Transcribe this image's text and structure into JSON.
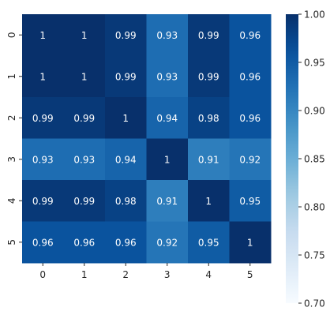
{
  "chart_data": {
    "type": "heatmap",
    "title": "",
    "xlabel": "",
    "ylabel": "",
    "x_categories": [
      "0",
      "1",
      "2",
      "3",
      "4",
      "5"
    ],
    "y_categories": [
      "0",
      "1",
      "2",
      "3",
      "4",
      "5"
    ],
    "values": [
      [
        1.0,
        1.0,
        0.99,
        0.93,
        0.99,
        0.96
      ],
      [
        1.0,
        1.0,
        0.99,
        0.93,
        0.99,
        0.96
      ],
      [
        0.99,
        0.99,
        1.0,
        0.94,
        0.98,
        0.96
      ],
      [
        0.93,
        0.93,
        0.94,
        1.0,
        0.91,
        0.92
      ],
      [
        0.99,
        0.99,
        0.98,
        0.91,
        1.0,
        0.95
      ],
      [
        0.96,
        0.96,
        0.96,
        0.92,
        0.95,
        1.0
      ]
    ],
    "annotations": [
      [
        "1",
        "1",
        "0.99",
        "0.93",
        "0.99",
        "0.96"
      ],
      [
        "1",
        "1",
        "0.99",
        "0.93",
        "0.99",
        "0.96"
      ],
      [
        "0.99",
        "0.99",
        "1",
        "0.94",
        "0.98",
        "0.96"
      ],
      [
        "0.93",
        "0.93",
        "0.94",
        "1",
        "0.91",
        "0.92"
      ],
      [
        "0.99",
        "0.99",
        "0.98",
        "0.91",
        "1",
        "0.95"
      ],
      [
        "0.96",
        "0.96",
        "0.96",
        "0.92",
        "0.95",
        "1"
      ]
    ],
    "colormap": "Blues",
    "vmin": 0.7,
    "vmax": 1.0,
    "colorbar": {
      "ticks": [
        0.7,
        0.75,
        0.8,
        0.85,
        0.9,
        0.95,
        1.0
      ],
      "tick_labels": [
        "0.70",
        "0.75",
        "0.80",
        "0.85",
        "0.90",
        "0.95",
        "1.00"
      ],
      "placement": "right"
    }
  }
}
